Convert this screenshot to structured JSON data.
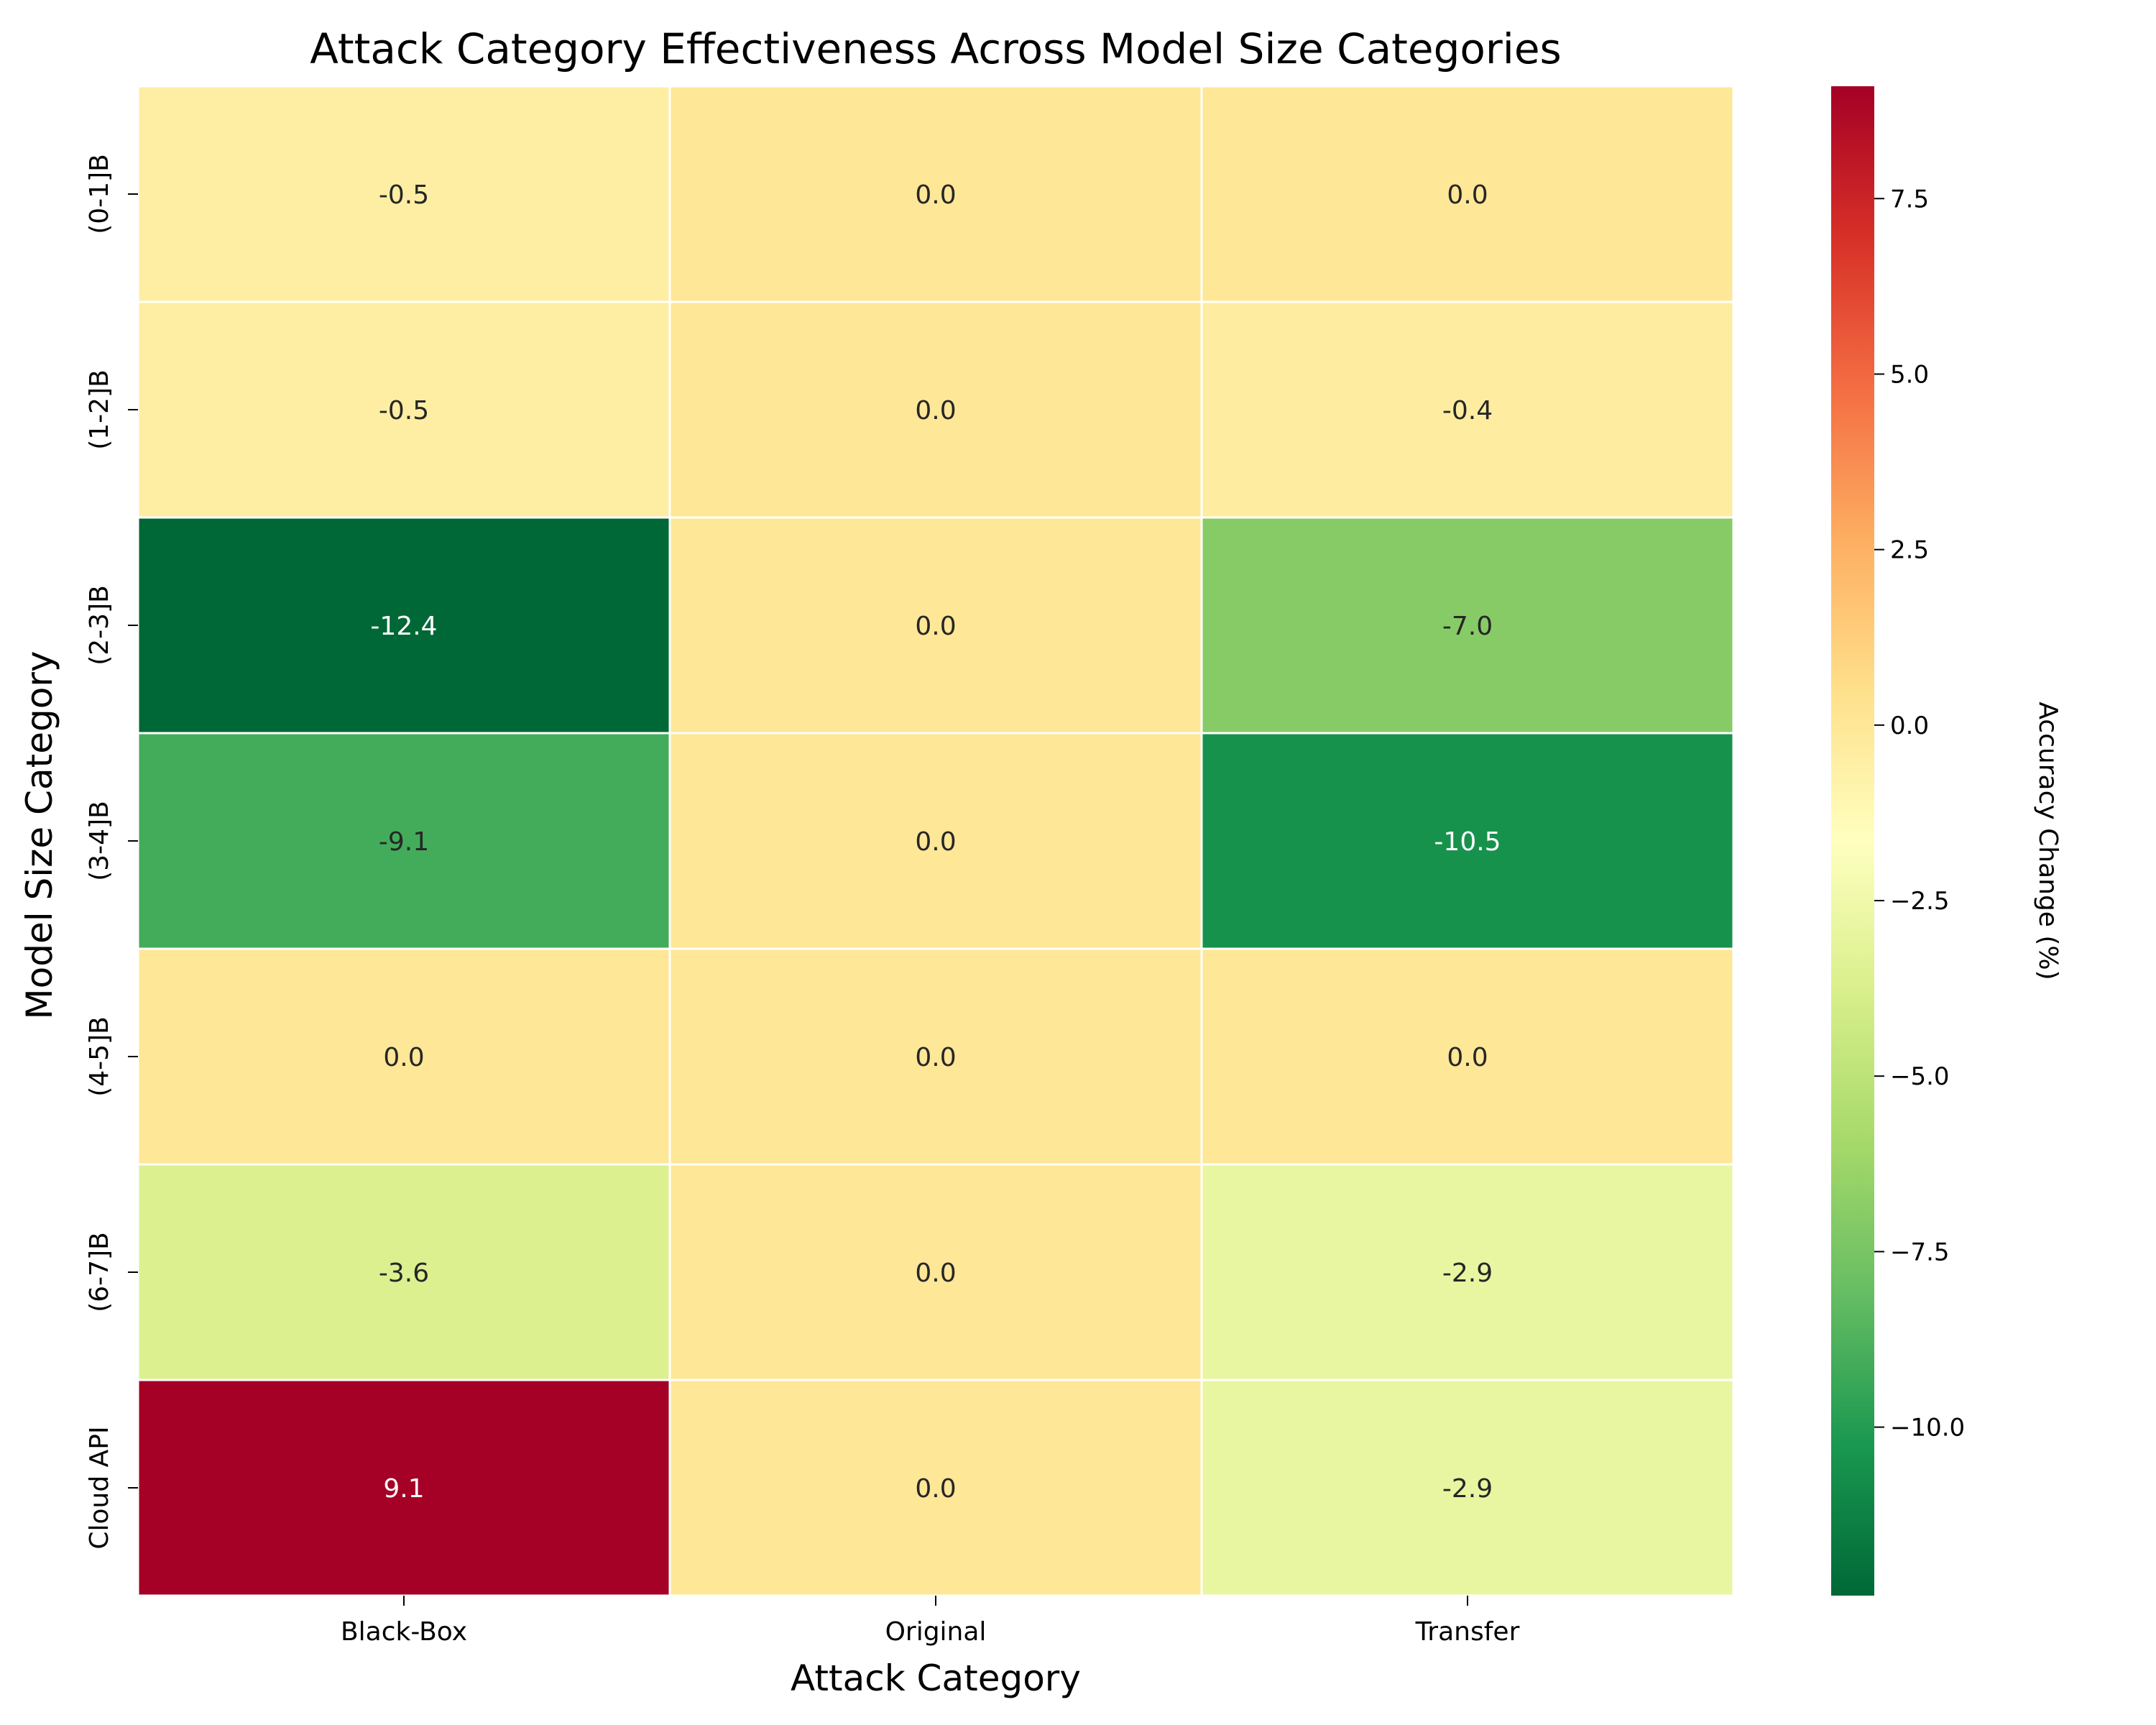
{
  "chart_data": {
    "type": "heatmap",
    "title": "Attack Category Effectiveness Across Model Size Categories",
    "xlabel": "Attack Category",
    "ylabel": "Model Size Category",
    "x_categories": [
      "Black-Box",
      "Original",
      "Transfer"
    ],
    "y_categories": [
      "(0-1]B",
      "(1-2]B",
      "(2-3]B",
      "(3-4]B",
      "(4-5]B",
      "(6-7]B",
      "Cloud API"
    ],
    "values": [
      [
        -0.5,
        0.0,
        0.0
      ],
      [
        -0.5,
        0.0,
        -0.4
      ],
      [
        -12.4,
        0.0,
        -7.0
      ],
      [
        -9.1,
        0.0,
        -10.5
      ],
      [
        0.0,
        0.0,
        0.0
      ],
      [
        -3.6,
        0.0,
        -2.9
      ],
      [
        9.1,
        0.0,
        -2.9
      ]
    ],
    "value_labels": [
      [
        "-0.5",
        "0.0",
        "0.0"
      ],
      [
        "-0.5",
        "0.0",
        "-0.4"
      ],
      [
        "-12.4",
        "0.0",
        "-7.0"
      ],
      [
        "-9.1",
        "0.0",
        "-10.5"
      ],
      [
        "0.0",
        "0.0",
        "0.0"
      ],
      [
        "-3.6",
        "0.0",
        "-2.9"
      ],
      [
        "9.1",
        "0.0",
        "-2.9"
      ]
    ],
    "colormap": "RdYlGn_r",
    "color_range": [
      -12.4,
      9.1
    ],
    "colorbar": {
      "label": "Accuracy Change (%)",
      "ticks": [
        7.5,
        5.0,
        2.5,
        0.0,
        -2.5,
        -5.0,
        -7.5,
        -10.0
      ],
      "tick_labels": [
        "7.5",
        "5.0",
        "2.5",
        "0.0",
        "−2.5",
        "−5.0",
        "−7.5",
        "−10.0"
      ]
    },
    "grid": false,
    "legend": "colorbar-right"
  }
}
